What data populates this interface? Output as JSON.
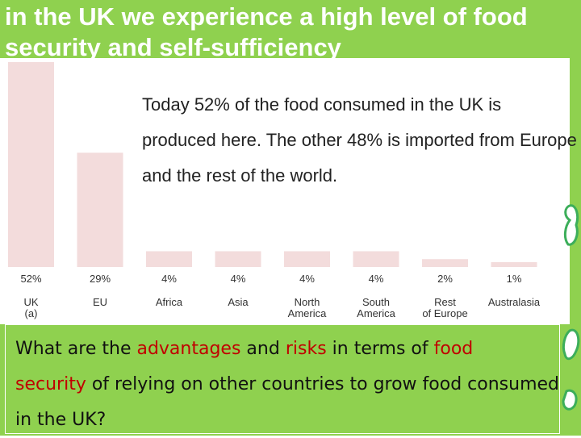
{
  "slide": {
    "title": "in the UK we experience a high level of food security and self-sufficiency",
    "statement": "Today 52% of the food consumed in the UK is produced here. The other 48% is imported from Europe and the rest of the world.",
    "question": {
      "part1": "What are the ",
      "advantages": "advantages",
      "part2": " and ",
      "risks": "risks",
      "part3": " in terms of ",
      "food": "food",
      "space": " ",
      "security": "security",
      "part4": " of relying on other countries to grow food consumed in the UK?"
    }
  },
  "colors": {
    "green": "#8fd14f",
    "bar": "#f3dcdc",
    "highlight": "#c00000"
  },
  "chart_data": {
    "type": "bar",
    "categories": [
      "UK (a)",
      "EU",
      "Africa",
      "Asia",
      "North America",
      "South America",
      "Rest of Europe",
      "Australasia"
    ],
    "values": [
      52,
      29,
      4,
      4,
      4,
      4,
      2,
      1
    ],
    "value_labels": [
      "52%",
      "29%",
      "4%",
      "4%",
      "4%",
      "4%",
      "2%",
      "1%"
    ],
    "title": "",
    "xlabel": "",
    "ylabel": "",
    "grid": false
  }
}
